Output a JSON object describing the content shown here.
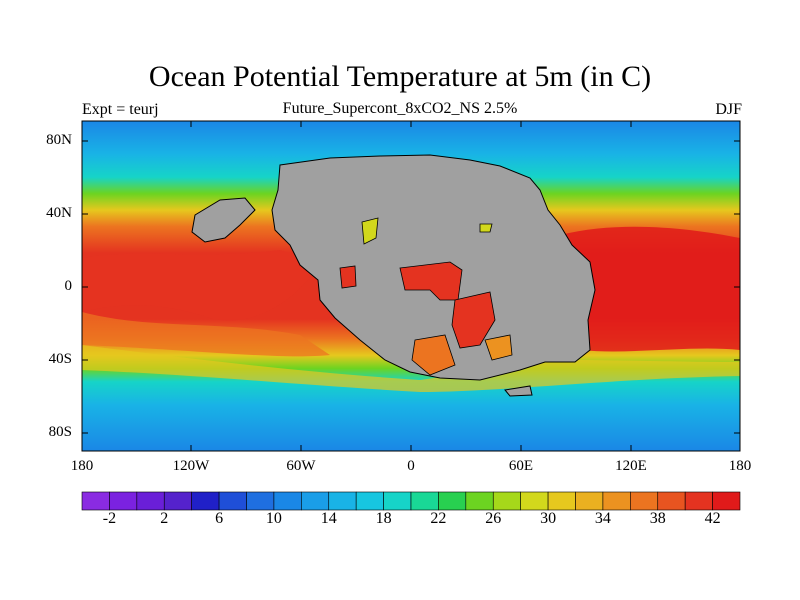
{
  "title": "Ocean Potential Temperature at 5m (in C)",
  "left_label": "Expt = teurj",
  "center_label": "Future_Supercont_8xCO2_NS 2.5%",
  "right_label": "DJF",
  "y_ticks": [
    "80N",
    "40N",
    "0",
    "40S",
    "80S"
  ],
  "x_ticks": [
    "180",
    "120W",
    "60W",
    "0",
    "60E",
    "120E",
    "180"
  ],
  "colorbar": {
    "tick_labels": [
      "-2",
      "2",
      "6",
      "10",
      "14",
      "18",
      "22",
      "26",
      "30",
      "34",
      "38",
      "42"
    ],
    "colors": [
      "#8a2be2",
      "#7b22e0",
      "#6a1fd8",
      "#5522cc",
      "#2020c8",
      "#1f4fd8",
      "#1f6fe0",
      "#1a87e6",
      "#1a9ee8",
      "#19b3e6",
      "#17c6e0",
      "#16d4c8",
      "#19d896",
      "#28d050",
      "#6cd421",
      "#a6d81a",
      "#d2d81c",
      "#e6c81e",
      "#eab020",
      "#ec9220",
      "#ec7420",
      "#e85420",
      "#e43320",
      "#e01a1a"
    ]
  },
  "map": {
    "land_color": "#a0a0a0",
    "ocean_colors": {
      "polar": "#1a87e6",
      "cool": "#16d4c8",
      "temperate": "#e6c81e",
      "warm": "#ec7420",
      "hot": "#e43320"
    }
  }
}
